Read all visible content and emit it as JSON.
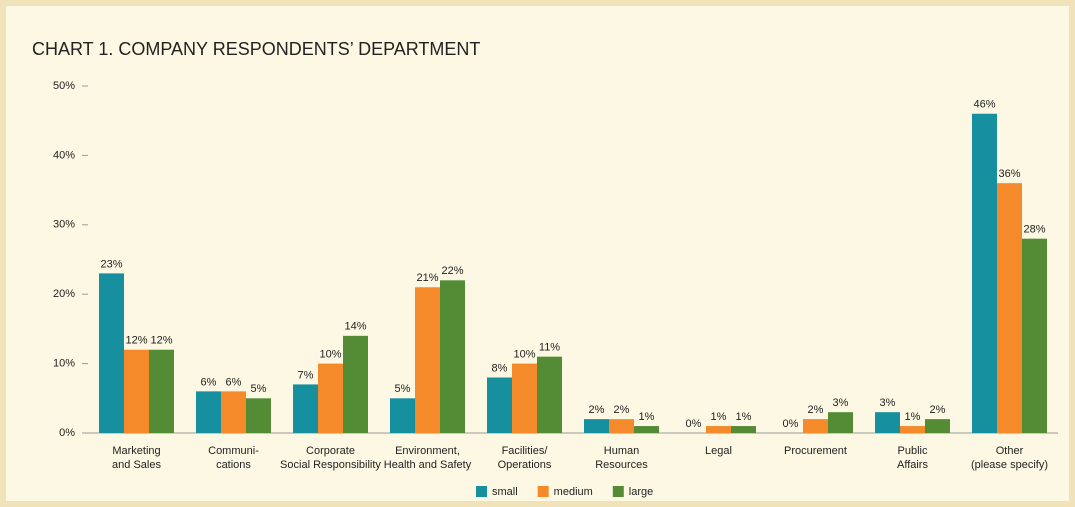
{
  "chart_data": {
    "type": "bar",
    "title": "CHART 1. COMPANY RESPONDENTS’ DEPARTMENT",
    "categories": [
      [
        "Marketing",
        "and Sales"
      ],
      [
        "Communi-",
        "cations"
      ],
      [
        "Corporate",
        "Social Responsibility"
      ],
      [
        "Environment,",
        "Health and Safety"
      ],
      [
        "Facilities/",
        "Operations"
      ],
      [
        "Human",
        "Resources"
      ],
      [
        "Legal"
      ],
      [
        "Procurement"
      ],
      [
        "Public",
        "Affairs"
      ],
      [
        "Other",
        "(please specify)"
      ]
    ],
    "series": [
      {
        "name": "small",
        "color": "#16909e",
        "values": [
          23,
          6,
          7,
          5,
          8,
          2,
          0,
          0,
          3,
          46
        ],
        "value_labels": [
          "23%",
          "6%",
          "7%",
          "5%",
          "8%",
          "2%",
          "0%",
          "0%",
          "3%",
          "46%"
        ]
      },
      {
        "name": "medium",
        "color": "#f48a2a",
        "values": [
          12,
          6,
          10,
          21,
          10,
          2,
          1,
          2,
          1,
          36
        ],
        "value_labels": [
          "12%",
          "6%",
          "10%",
          "21%",
          "10%",
          "2%",
          "1%",
          "2%",
          "1%",
          "36%"
        ]
      },
      {
        "name": "large",
        "color": "#548c36",
        "values": [
          12,
          5,
          14,
          22,
          11,
          1,
          1,
          3,
          2,
          28
        ],
        "value_labels": [
          "12%",
          "5%",
          "14%",
          "22%",
          "11%",
          "1%",
          "1%",
          "3%",
          "2%",
          "28%"
        ]
      }
    ],
    "ylim": [
      0,
      50
    ],
    "yticks": [
      {
        "value": 0,
        "label": "0%"
      },
      {
        "value": 10,
        "label": "10%"
      },
      {
        "value": 20,
        "label": "20%"
      },
      {
        "value": 30,
        "label": "30%"
      },
      {
        "value": 40,
        "label": "40%"
      },
      {
        "value": 50,
        "label": "50%"
      }
    ],
    "grid": false,
    "legend": "bottom"
  }
}
